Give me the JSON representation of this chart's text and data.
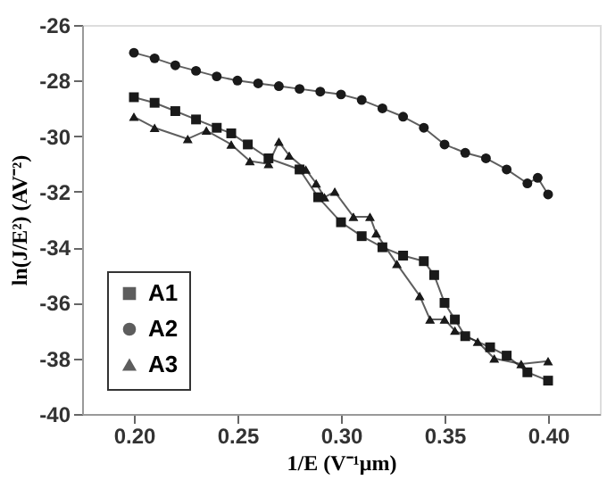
{
  "chart_data": {
    "type": "line",
    "xlabel": "1/E (V⁻¹μm)",
    "ylabel": "ln(J/E²) (AV⁻²)",
    "xlim": [
      0.175,
      0.425
    ],
    "xticks": [
      {
        "value": 0.2,
        "label": "0.20"
      },
      0.25,
      {
        "value": 0.3,
        "label": "0.30"
      },
      0.35,
      {
        "value": 0.4,
        "label": "0.40"
      }
    ],
    "ylim": [
      -40,
      -26
    ],
    "yticks": [
      -40,
      -38,
      -36,
      -34,
      -32,
      -30,
      -28,
      -26
    ],
    "grid": false,
    "legend": "bottom left",
    "line_style": "solid",
    "series": [
      {
        "name": "A1",
        "color": "#1a1a1a",
        "marker": "square",
        "x": [
          0.2,
          0.21,
          0.22,
          0.23,
          0.24,
          0.247,
          0.255,
          0.265,
          0.28,
          0.289,
          0.3,
          0.31,
          0.32,
          0.33,
          0.34,
          0.345,
          0.35,
          0.355,
          0.36,
          0.372,
          0.38,
          0.39,
          0.4
        ],
        "values": [
          -28.6,
          -28.8,
          -29.1,
          -29.4,
          -29.7,
          -29.9,
          -30.3,
          -30.8,
          -31.2,
          -32.2,
          -33.1,
          -33.6,
          -34.0,
          -34.3,
          -34.5,
          -35.0,
          -36.0,
          -36.6,
          -37.2,
          -37.6,
          -37.9,
          -38.5,
          -38.8
        ]
      },
      {
        "name": "A2",
        "color": "#1a1a1a",
        "marker": "circle",
        "x": [
          0.2,
          0.21,
          0.22,
          0.23,
          0.24,
          0.25,
          0.26,
          0.27,
          0.28,
          0.29,
          0.3,
          0.31,
          0.32,
          0.33,
          0.34,
          0.35,
          0.36,
          0.37,
          0.38,
          0.39,
          0.395,
          0.4
        ],
        "values": [
          -27.0,
          -27.2,
          -27.45,
          -27.65,
          -27.85,
          -28.0,
          -28.1,
          -28.2,
          -28.3,
          -28.4,
          -28.5,
          -28.7,
          -29.0,
          -29.3,
          -29.7,
          -30.3,
          -30.6,
          -30.8,
          -31.2,
          -31.7,
          -31.5,
          -32.1
        ]
      },
      {
        "name": "A3",
        "color": "#1a1a1a",
        "marker": "triangle",
        "x": [
          0.2,
          0.21,
          0.226,
          0.235,
          0.247,
          0.256,
          0.265,
          0.27,
          0.275,
          0.283,
          0.288,
          0.292,
          0.297,
          0.306,
          0.314,
          0.317,
          0.327,
          0.338,
          0.343,
          0.35,
          0.355,
          0.366,
          0.374,
          0.387,
          0.4
        ],
        "values": [
          -29.3,
          -29.7,
          -30.1,
          -29.8,
          -30.3,
          -30.9,
          -31.0,
          -30.2,
          -30.7,
          -31.2,
          -31.7,
          -32.2,
          -32.0,
          -32.9,
          -32.9,
          -33.5,
          -34.6,
          -35.75,
          -36.6,
          -36.6,
          -37.0,
          -37.4,
          -38.0,
          -38.2,
          -38.1
        ]
      }
    ]
  }
}
